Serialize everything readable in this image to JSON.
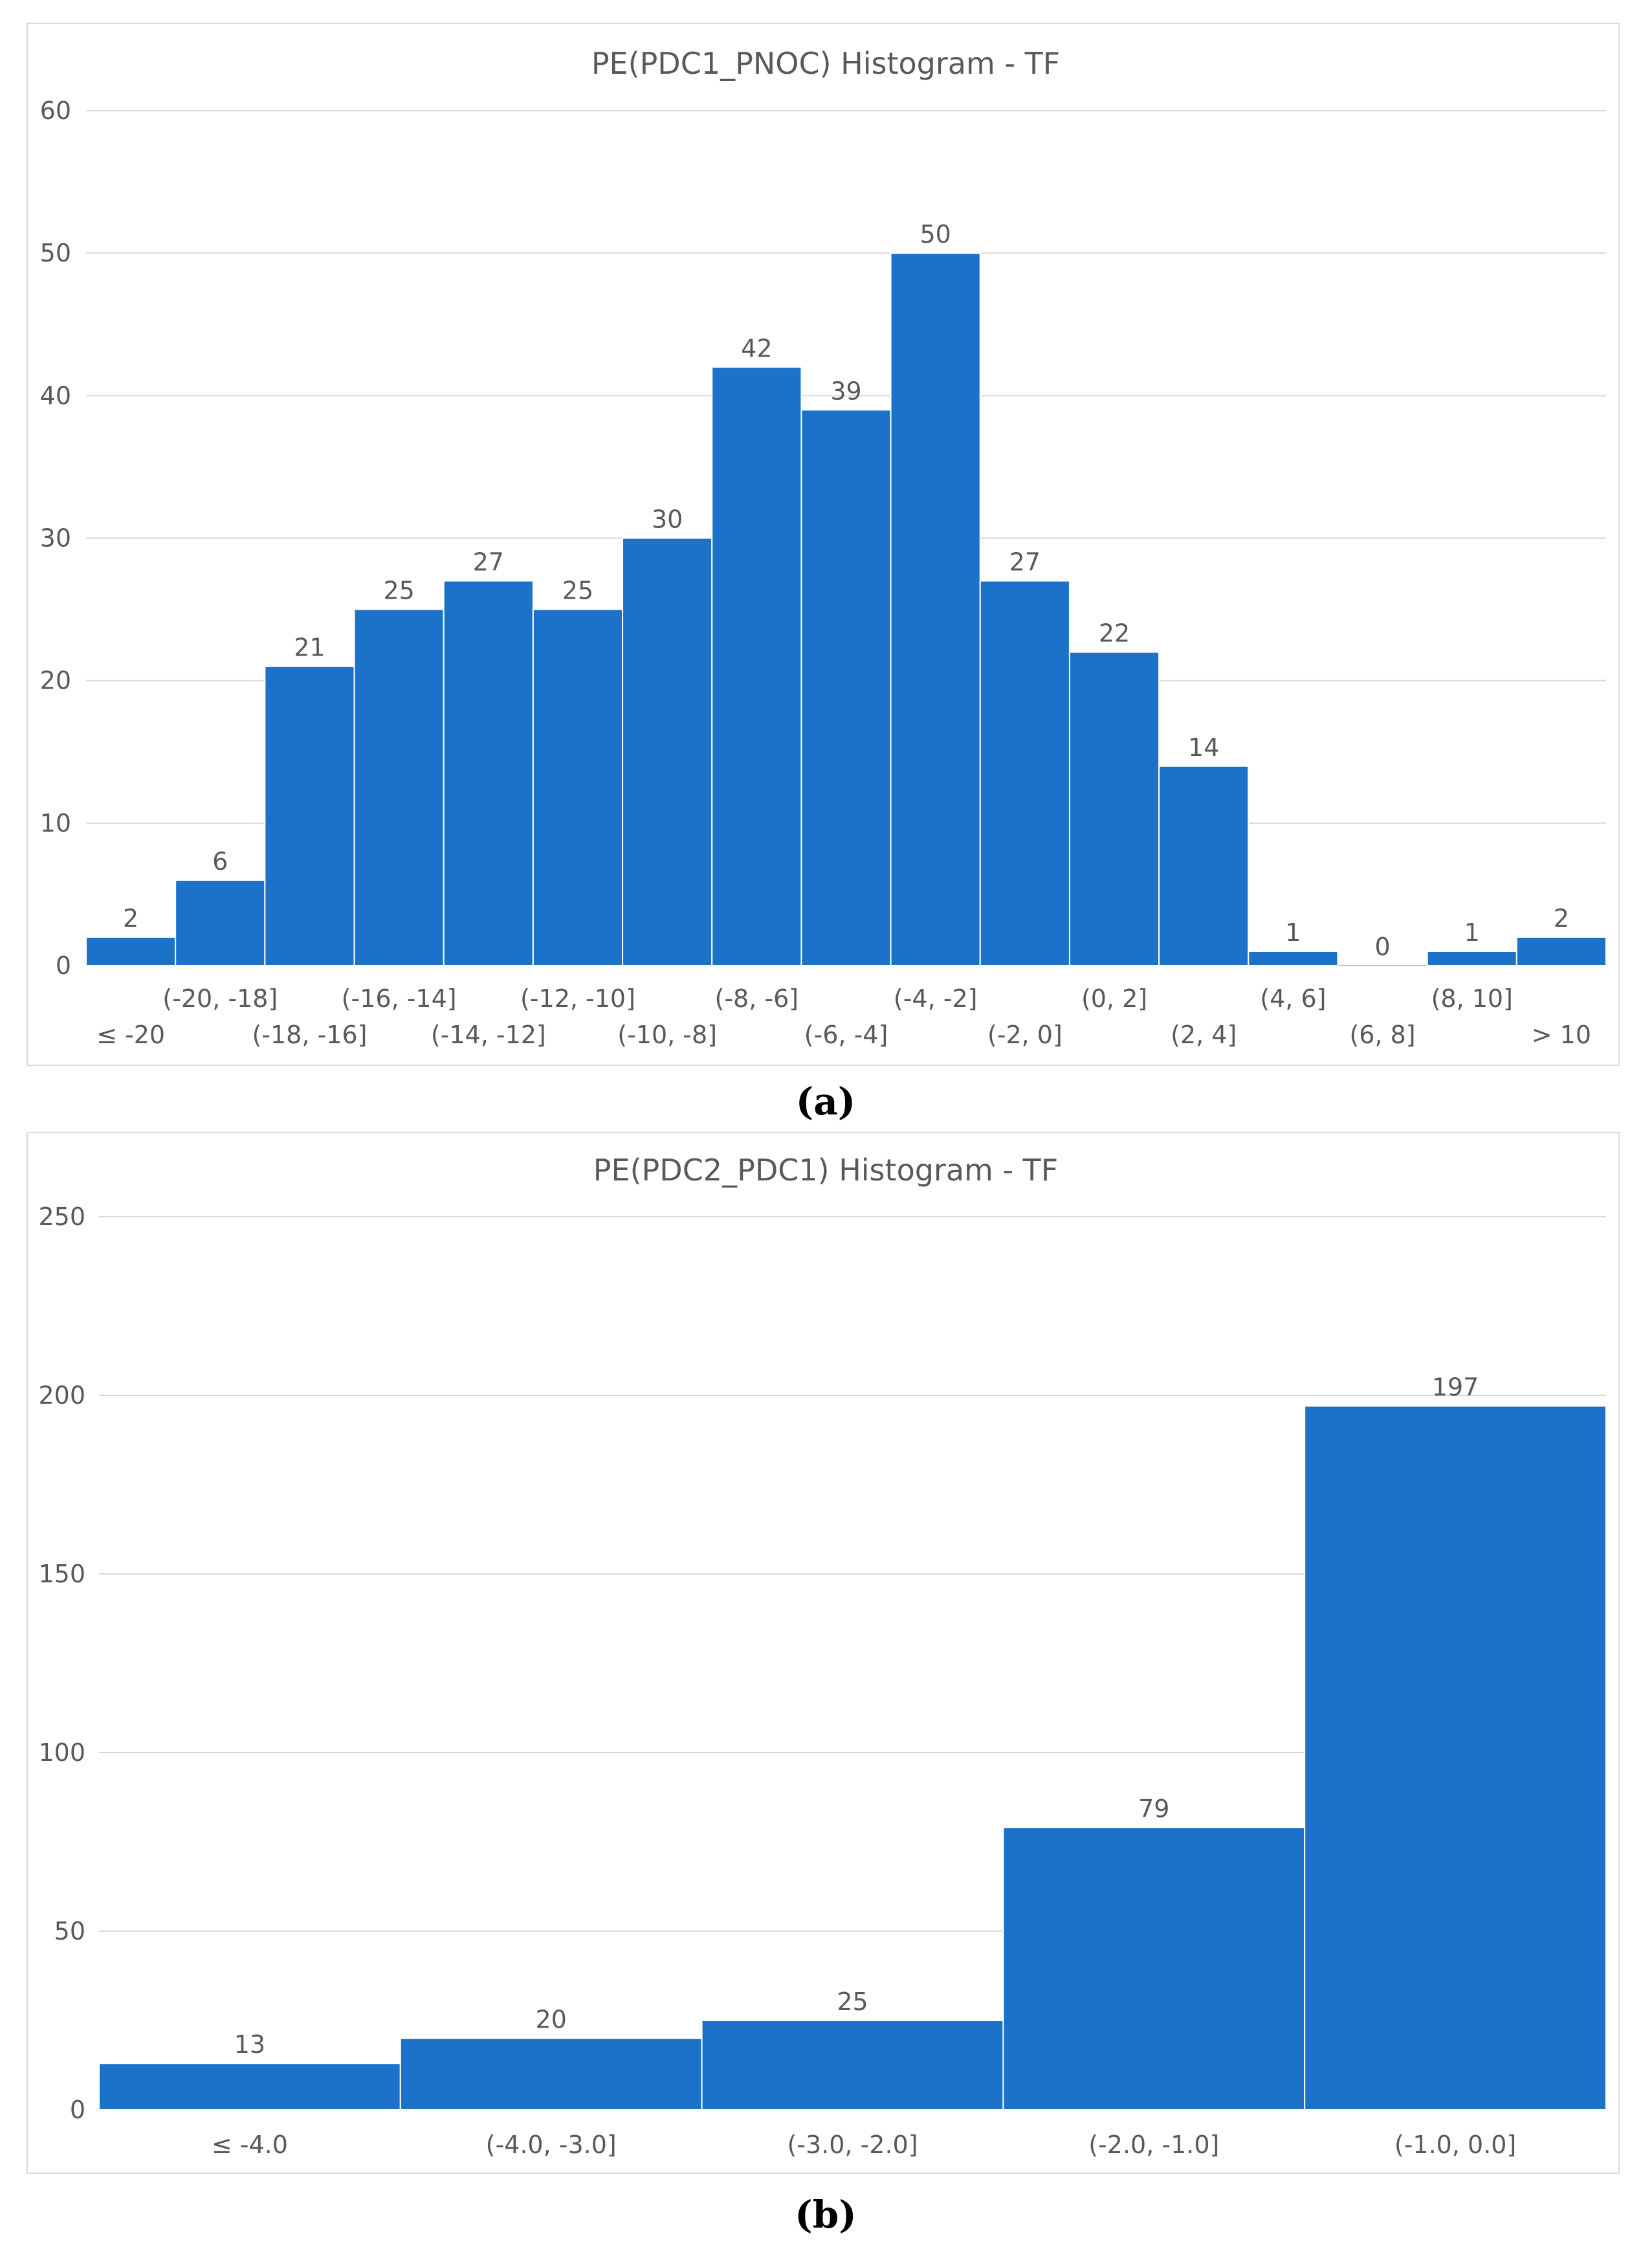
{
  "colors": {
    "bar": "#1b72c8"
  },
  "chart_data": [
    {
      "type": "bar",
      "caption": "(a)",
      "title": "PE(PDC1_PNOC) Histogram - TF",
      "xlabel": "",
      "ylabel": "",
      "ylim": [
        0,
        60
      ],
      "yticks": [
        "0",
        "10",
        "20",
        "30",
        "40",
        "50",
        "60"
      ],
      "categories": [
        "≤ -20",
        "(-20, -18]",
        "(-18, -16]",
        "(-16, -14]",
        "(-14, -12]",
        "(-12, -10]",
        "(-10, -8]",
        "(-8, -6]",
        "(-6, -4]",
        "(-4, -2]",
        "(-2, 0]",
        "(0, 2]",
        "(2, 4]",
        "(4, 6]",
        "(6, 8]",
        "(8, 10]",
        "> 10"
      ],
      "values": [
        2,
        6,
        21,
        25,
        27,
        25,
        30,
        42,
        39,
        50,
        27,
        22,
        14,
        1,
        0,
        1,
        2
      ],
      "data_labels": [
        "2",
        "6",
        "21",
        "25",
        "27",
        "25",
        "30",
        "42",
        "39",
        "50",
        "27",
        "22",
        "14",
        "1",
        "0",
        "1",
        "2"
      ],
      "grid": true,
      "legend": "none"
    },
    {
      "type": "bar",
      "caption": "(b)",
      "title": "PE(PDC2_PDC1) Histogram - TF",
      "xlabel": "",
      "ylabel": "",
      "ylim": [
        0,
        250
      ],
      "yticks": [
        "0",
        "50",
        "100",
        "150",
        "200",
        "250"
      ],
      "categories": [
        "≤ -4.0",
        "(-4.0, -3.0]",
        "(-3.0, -2.0]",
        "(-2.0, -1.0]",
        "(-1.0, 0.0]"
      ],
      "values": [
        13,
        20,
        25,
        79,
        197
      ],
      "data_labels": [
        "13",
        "20",
        "25",
        "79",
        "197"
      ],
      "grid": true,
      "legend": "none"
    }
  ]
}
